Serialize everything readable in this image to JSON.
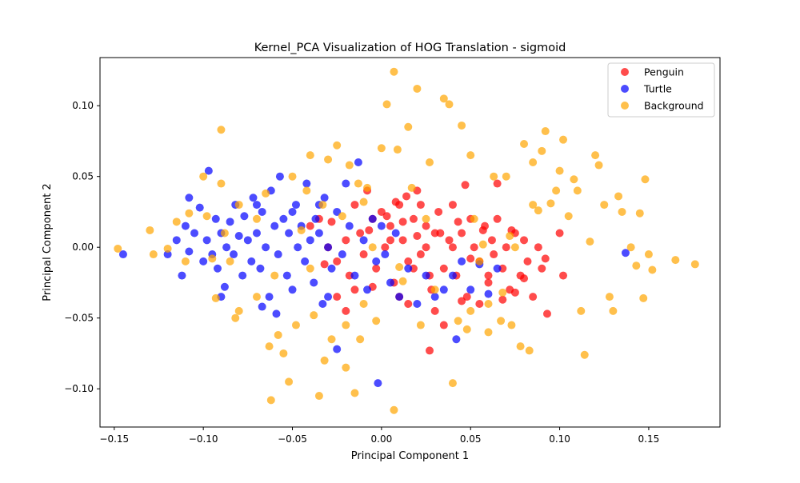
{
  "chart_data": {
    "type": "scatter",
    "title": "Kernel_PCA Visualization of HOG Translation - sigmoid",
    "xlabel": "Principal Component 1",
    "ylabel": "Principal Component 2",
    "xlim": [
      -0.158,
      0.19
    ],
    "ylim": [
      -0.127,
      0.134
    ],
    "xticks": [
      -0.15,
      -0.1,
      -0.05,
      0.0,
      0.05,
      0.1,
      0.15
    ],
    "xtick_labels": [
      "−0.15",
      "−0.10",
      "−0.05",
      "0.00",
      "0.05",
      "0.10",
      "0.15"
    ],
    "yticks": [
      -0.1,
      -0.05,
      0.0,
      0.05,
      0.1
    ],
    "ytick_labels": [
      "−0.10",
      "−0.05",
      "0.00",
      "0.05",
      "0.10"
    ],
    "grid": false,
    "legend_position": "top-right",
    "series": [
      {
        "name": "Penguin",
        "color": "#ff0000",
        "points": [
          [
            -0.04,
            0.015
          ],
          [
            -0.035,
            0.02
          ],
          [
            -0.03,
            0.0
          ],
          [
            -0.025,
            -0.01
          ],
          [
            -0.02,
            0.005
          ],
          [
            -0.018,
            -0.02
          ],
          [
            -0.015,
            0.03
          ],
          [
            -0.012,
            0.01
          ],
          [
            -0.01,
            -0.005
          ],
          [
            -0.008,
            0.04
          ],
          [
            -0.005,
            0.02
          ],
          [
            -0.003,
            -0.015
          ],
          [
            0.0,
            0.025
          ],
          [
            0.002,
            0.0
          ],
          [
            0.005,
            0.015
          ],
          [
            0.007,
            -0.025
          ],
          [
            0.01,
            0.03
          ],
          [
            0.012,
            0.005
          ],
          [
            0.015,
            -0.01
          ],
          [
            0.018,
            0.02
          ],
          [
            0.02,
            0.04
          ],
          [
            0.022,
            -0.005
          ],
          [
            0.025,
            0.015
          ],
          [
            0.028,
            -0.03
          ],
          [
            0.03,
            0.01
          ],
          [
            0.032,
            0.025
          ],
          [
            0.035,
            -0.015
          ],
          [
            0.038,
            0.005
          ],
          [
            0.04,
            0.03
          ],
          [
            0.042,
            -0.02
          ],
          [
            0.045,
            0.01
          ],
          [
            0.048,
            -0.035
          ],
          [
            0.05,
            0.02
          ],
          [
            0.052,
            0.0
          ],
          [
            0.055,
            -0.01
          ],
          [
            0.058,
            0.015
          ],
          [
            0.06,
            -0.025
          ],
          [
            0.062,
            0.005
          ],
          [
            0.065,
            0.02
          ],
          [
            0.068,
            -0.015
          ],
          [
            0.07,
            0.0
          ],
          [
            0.072,
            -0.03
          ],
          [
            0.075,
            0.01
          ],
          [
            0.078,
            -0.02
          ],
          [
            0.08,
            0.005
          ],
          [
            0.082,
            -0.01
          ],
          [
            0.085,
            -0.035
          ],
          [
            0.088,
            0.0
          ],
          [
            0.09,
            -0.015
          ],
          [
            0.093,
            -0.047
          ],
          [
            0.1,
            0.01
          ],
          [
            0.102,
            -0.02
          ],
          [
            0.027,
            -0.073
          ],
          [
            0.047,
            0.044
          ],
          [
            0.065,
            0.045
          ],
          [
            -0.005,
            -0.028
          ],
          [
            0.01,
            -0.035
          ],
          [
            0.015,
            -0.04
          ],
          [
            0.03,
            -0.045
          ],
          [
            0.035,
            -0.055
          ],
          [
            0.045,
            -0.038
          ],
          [
            0.055,
            -0.04
          ],
          [
            0.06,
            -0.02
          ],
          [
            0.068,
            -0.037
          ],
          [
            0.075,
            -0.032
          ],
          [
            -0.025,
            -0.035
          ],
          [
            -0.02,
            -0.045
          ],
          [
            -0.015,
            -0.03
          ],
          [
            0.005,
            0.005
          ],
          [
            0.003,
            0.022
          ],
          [
            0.012,
            0.018
          ],
          [
            0.022,
            0.03
          ],
          [
            0.027,
            -0.02
          ],
          [
            0.033,
            0.01
          ],
          [
            0.043,
            0.018
          ],
          [
            0.05,
            -0.008
          ],
          [
            0.057,
            0.012
          ],
          [
            0.063,
            -0.005
          ],
          [
            0.073,
            0.012
          ],
          [
            0.08,
            -0.022
          ],
          [
            0.092,
            -0.008
          ],
          [
            0.04,
            0.0
          ],
          [
            0.025,
            0.0
          ],
          [
            0.018,
            -0.015
          ],
          [
            -0.007,
            0.012
          ],
          [
            -0.028,
            0.018
          ],
          [
            -0.032,
            -0.012
          ],
          [
            0.008,
            0.032
          ],
          [
            0.014,
            0.036
          ],
          [
            0.02,
            0.008
          ]
        ]
      },
      {
        "name": "Turtle",
        "color": "#0000ff",
        "points": [
          [
            -0.145,
            -0.005
          ],
          [
            -0.115,
            0.005
          ],
          [
            -0.112,
            -0.02
          ],
          [
            -0.11,
            0.015
          ],
          [
            -0.108,
            -0.003
          ],
          [
            -0.105,
            0.01
          ],
          [
            -0.102,
            0.028
          ],
          [
            -0.1,
            -0.01
          ],
          [
            -0.098,
            0.005
          ],
          [
            -0.097,
            0.054
          ],
          [
            -0.095,
            -0.005
          ],
          [
            -0.093,
            0.02
          ],
          [
            -0.092,
            -0.015
          ],
          [
            -0.09,
            0.01
          ],
          [
            -0.088,
            -0.028
          ],
          [
            -0.087,
            0.0
          ],
          [
            -0.085,
            0.018
          ],
          [
            -0.083,
            -0.005
          ],
          [
            -0.082,
            0.03
          ],
          [
            -0.08,
            0.008
          ],
          [
            -0.078,
            -0.02
          ],
          [
            -0.077,
            0.022
          ],
          [
            -0.075,
            0.005
          ],
          [
            -0.073,
            -0.01
          ],
          [
            -0.072,
            0.035
          ],
          [
            -0.07,
            0.01
          ],
          [
            -0.068,
            -0.015
          ],
          [
            -0.067,
            0.025
          ],
          [
            -0.065,
            0.0
          ],
          [
            -0.063,
            -0.035
          ],
          [
            -0.062,
            0.04
          ],
          [
            -0.06,
            0.015
          ],
          [
            -0.058,
            -0.005
          ],
          [
            -0.057,
            0.05
          ],
          [
            -0.055,
            0.02
          ],
          [
            -0.053,
            -0.02
          ],
          [
            -0.052,
            0.01
          ],
          [
            -0.05,
            -0.03
          ],
          [
            -0.048,
            0.03
          ],
          [
            -0.047,
            0.0
          ],
          [
            -0.045,
            0.015
          ],
          [
            -0.043,
            -0.01
          ],
          [
            -0.042,
            0.045
          ],
          [
            -0.04,
            0.005
          ],
          [
            -0.038,
            -0.025
          ],
          [
            -0.037,
            0.02
          ],
          [
            -0.035,
            0.01
          ],
          [
            -0.033,
            -0.04
          ],
          [
            -0.032,
            0.035
          ],
          [
            -0.03,
            0.0
          ],
          [
            -0.028,
            -0.015
          ],
          [
            -0.025,
            0.025
          ],
          [
            -0.022,
            -0.005
          ],
          [
            -0.02,
            0.045
          ],
          [
            -0.018,
            0.015
          ],
          [
            -0.015,
            -0.02
          ],
          [
            -0.013,
            0.06
          ],
          [
            -0.01,
            0.005
          ],
          [
            -0.008,
            -0.03
          ],
          [
            -0.005,
            0.02
          ],
          [
            -0.003,
            -0.01
          ],
          [
            0.0,
            0.015
          ],
          [
            0.002,
            -0.005
          ],
          [
            0.005,
            -0.025
          ],
          [
            0.008,
            0.01
          ],
          [
            0.01,
            -0.035
          ],
          [
            0.015,
            -0.015
          ],
          [
            0.02,
            -0.04
          ],
          [
            0.025,
            -0.02
          ],
          [
            0.03,
            -0.035
          ],
          [
            0.035,
            -0.03
          ],
          [
            0.04,
            -0.02
          ],
          [
            0.042,
            -0.065
          ],
          [
            0.045,
            -0.01
          ],
          [
            0.05,
            -0.03
          ],
          [
            0.055,
            -0.012
          ],
          [
            0.06,
            -0.033
          ],
          [
            0.065,
            -0.015
          ],
          [
            0.137,
            -0.004
          ],
          [
            -0.002,
            -0.096
          ],
          [
            -0.025,
            -0.072
          ],
          [
            -0.03,
            -0.035
          ],
          [
            -0.067,
            -0.042
          ],
          [
            -0.059,
            -0.047
          ],
          [
            -0.09,
            -0.035
          ],
          [
            -0.12,
            -0.005
          ],
          [
            -0.108,
            0.035
          ],
          [
            -0.07,
            0.03
          ],
          [
            -0.05,
            0.025
          ],
          [
            -0.035,
            0.03
          ]
        ]
      },
      {
        "name": "Background",
        "color": "#ffa500",
        "points": [
          [
            -0.148,
            -0.001
          ],
          [
            -0.13,
            0.012
          ],
          [
            -0.128,
            -0.005
          ],
          [
            -0.12,
            -0.001
          ],
          [
            -0.115,
            0.018
          ],
          [
            -0.11,
            -0.01
          ],
          [
            -0.108,
            0.024
          ],
          [
            -0.1,
            0.05
          ],
          [
            -0.098,
            0.022
          ],
          [
            -0.095,
            -0.008
          ],
          [
            -0.093,
            -0.036
          ],
          [
            -0.09,
            0.083
          ],
          [
            -0.09,
            0.045
          ],
          [
            -0.088,
            0.01
          ],
          [
            -0.085,
            -0.01
          ],
          [
            -0.082,
            -0.05
          ],
          [
            -0.08,
            0.03
          ],
          [
            -0.07,
            0.02
          ],
          [
            -0.065,
            0.038
          ],
          [
            -0.063,
            -0.07
          ],
          [
            -0.062,
            -0.108
          ],
          [
            -0.06,
            -0.02
          ],
          [
            -0.058,
            -0.062
          ],
          [
            -0.055,
            -0.075
          ],
          [
            -0.052,
            -0.095
          ],
          [
            -0.05,
            0.05
          ],
          [
            -0.048,
            -0.055
          ],
          [
            -0.045,
            0.012
          ],
          [
            -0.042,
            0.04
          ],
          [
            -0.04,
            0.065
          ],
          [
            -0.038,
            -0.048
          ],
          [
            -0.035,
            -0.105
          ],
          [
            -0.033,
            0.03
          ],
          [
            -0.032,
            -0.08
          ],
          [
            -0.03,
            0.062
          ],
          [
            -0.028,
            -0.065
          ],
          [
            -0.025,
            0.072
          ],
          [
            -0.022,
            0.022
          ],
          [
            -0.02,
            -0.055
          ],
          [
            -0.018,
            0.058
          ],
          [
            -0.015,
            -0.103
          ],
          [
            -0.013,
            0.045
          ],
          [
            -0.012,
            -0.065
          ],
          [
            -0.01,
            0.032
          ],
          [
            -0.008,
            0.042
          ],
          [
            -0.005,
            0.0
          ],
          [
            -0.003,
            -0.052
          ],
          [
            0.0,
            0.07
          ],
          [
            0.003,
            0.101
          ],
          [
            0.007,
            0.124
          ],
          [
            0.009,
            0.069
          ],
          [
            0.01,
            -0.014
          ],
          [
            0.012,
            -0.024
          ],
          [
            0.015,
            0.085
          ],
          [
            0.017,
            0.042
          ],
          [
            0.02,
            0.112
          ],
          [
            0.022,
            -0.055
          ],
          [
            0.025,
            0.02
          ],
          [
            0.027,
            0.06
          ],
          [
            0.03,
            -0.03
          ],
          [
            0.035,
            0.105
          ],
          [
            0.038,
            0.101
          ],
          [
            0.04,
            -0.096
          ],
          [
            0.043,
            -0.052
          ],
          [
            0.045,
            0.086
          ],
          [
            0.048,
            -0.058
          ],
          [
            0.05,
            0.065
          ],
          [
            0.052,
            0.02
          ],
          [
            0.055,
            -0.01
          ],
          [
            0.057,
            0.002
          ],
          [
            0.06,
            -0.04
          ],
          [
            0.063,
            0.05
          ],
          [
            0.067,
            -0.052
          ],
          [
            0.07,
            0.05
          ],
          [
            0.073,
            -0.055
          ],
          [
            0.075,
            0.0
          ],
          [
            0.078,
            -0.07
          ],
          [
            0.08,
            0.073
          ],
          [
            0.083,
            -0.073
          ],
          [
            0.085,
            0.06
          ],
          [
            0.088,
            0.026
          ],
          [
            0.09,
            0.068
          ],
          [
            0.092,
            0.082
          ],
          [
            0.095,
            0.031
          ],
          [
            0.098,
            0.04
          ],
          [
            0.1,
            0.054
          ],
          [
            0.102,
            0.076
          ],
          [
            0.105,
            0.022
          ],
          [
            0.108,
            0.048
          ],
          [
            0.11,
            0.04
          ],
          [
            0.112,
            -0.045
          ],
          [
            0.114,
            -0.076
          ],
          [
            0.117,
            0.004
          ],
          [
            0.12,
            0.065
          ],
          [
            0.122,
            0.058
          ],
          [
            0.125,
            0.03
          ],
          [
            0.128,
            -0.035
          ],
          [
            0.13,
            -0.045
          ],
          [
            0.133,
            0.036
          ],
          [
            0.135,
            0.025
          ],
          [
            0.14,
            0.0
          ],
          [
            0.143,
            -0.013
          ],
          [
            0.145,
            0.024
          ],
          [
            0.147,
            -0.036
          ],
          [
            0.148,
            0.048
          ],
          [
            0.15,
            -0.005
          ],
          [
            0.152,
            -0.016
          ],
          [
            0.165,
            -0.009
          ],
          [
            0.176,
            -0.012
          ],
          [
            0.007,
            -0.115
          ],
          [
            -0.07,
            -0.035
          ],
          [
            -0.08,
            -0.045
          ],
          [
            -0.04,
            -0.015
          ],
          [
            -0.02,
            -0.085
          ],
          [
            -0.01,
            -0.04
          ],
          [
            0.05,
            -0.045
          ],
          [
            0.06,
            -0.06
          ],
          [
            0.068,
            -0.032
          ],
          [
            0.072,
            0.008
          ],
          [
            0.085,
            0.03
          ]
        ]
      }
    ]
  }
}
